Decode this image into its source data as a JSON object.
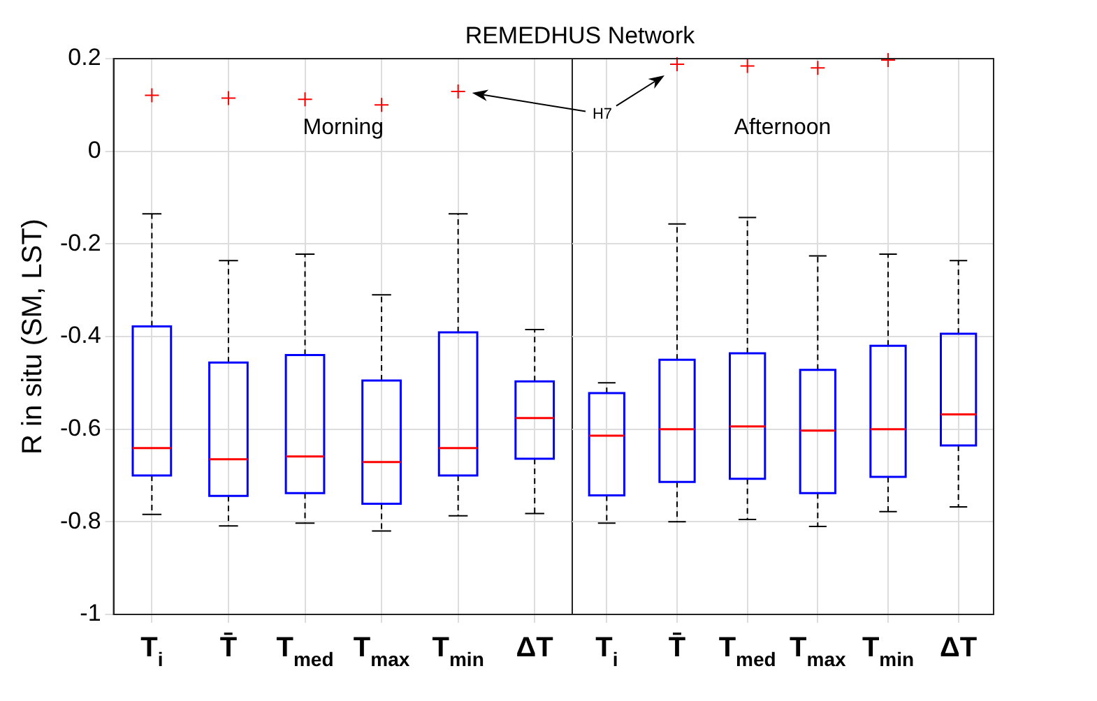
{
  "chart_data": [
    {
      "type": "box",
      "title": "REMEDHUS Network",
      "ylabel": "R in situ (SM, LST)",
      "categories": [
        "T$_{i}$",
        "T̄",
        "T$_{med}$",
        "T$_{max}$",
        "T$_{min}$",
        "ΔT"
      ],
      "series": [
        {
          "color": "#0000ff",
          "boxes": [
            {
              "low": -0.784,
              "q1": -0.7,
              "median": -0.641,
              "q3": -0.378,
              "high": -0.135,
              "outliers": [
                0.121
              ]
            },
            {
              "low": -0.809,
              "q1": -0.744,
              "median": -0.665,
              "q3": -0.456,
              "high": -0.236,
              "outliers": [
                0.115
              ]
            },
            {
              "low": -0.803,
              "q1": -0.738,
              "median": -0.659,
              "q3": -0.44,
              "high": -0.222,
              "outliers": [
                0.112
              ]
            },
            {
              "low": -0.82,
              "q1": -0.761,
              "median": -0.671,
              "q3": -0.495,
              "high": -0.31,
              "outliers": [
                0.1
              ]
            },
            {
              "low": -0.787,
              "q1": -0.7,
              "median": -0.641,
              "q3": -0.391,
              "high": -0.135,
              "outliers": [
                0.129
              ]
            },
            {
              "low": -0.782,
              "q1": -0.664,
              "median": -0.576,
              "q3": -0.497,
              "high": -0.385
            }
          ]
        }
      ],
      "ylim": [
        -1,
        0.2
      ],
      "yticks": [
        -1,
        -0.8,
        -0.6,
        -0.4,
        -0.2,
        0,
        0.2
      ],
      "grid": true,
      "annotations": [
        "Morning"
      ]
    },
    {
      "type": "box",
      "categories": [
        "T$_{i}$",
        "T̄",
        "T$_{med}$",
        "T$_{max}$",
        "T$_{min}$",
        "ΔT"
      ],
      "series": [
        {
          "color": "#0000ff",
          "boxes": [
            {
              "low": -0.803,
              "q1": -0.743,
              "median": -0.614,
              "q3": -0.522,
              "high": -0.5
            },
            {
              "low": -0.8,
              "q1": -0.714,
              "median": -0.6,
              "q3": -0.45,
              "high": -0.157,
              "outliers": [
                0.188
              ]
            },
            {
              "low": -0.795,
              "q1": -0.707,
              "median": -0.594,
              "q3": -0.436,
              "high": -0.143,
              "outliers": [
                0.184
              ]
            },
            {
              "low": -0.81,
              "q1": -0.738,
              "median": -0.603,
              "q3": -0.472,
              "high": -0.226,
              "outliers": [
                0.18
              ]
            },
            {
              "low": -0.778,
              "q1": -0.703,
              "median": -0.6,
              "q3": -0.42,
              "high": -0.222,
              "outliers": [
                0.197
              ]
            },
            {
              "low": -0.768,
              "q1": -0.635,
              "median": -0.568,
              "q3": -0.394,
              "high": -0.236
            }
          ]
        }
      ],
      "ylim": [
        -1,
        0.2
      ],
      "yticks": [
        -1,
        -0.8,
        -0.6,
        -0.4,
        -0.2,
        0,
        0.2
      ],
      "grid": true,
      "tick_labels": "x",
      "annotations": [
        "Afternoon",
        "H7"
      ]
    }
  ]
}
